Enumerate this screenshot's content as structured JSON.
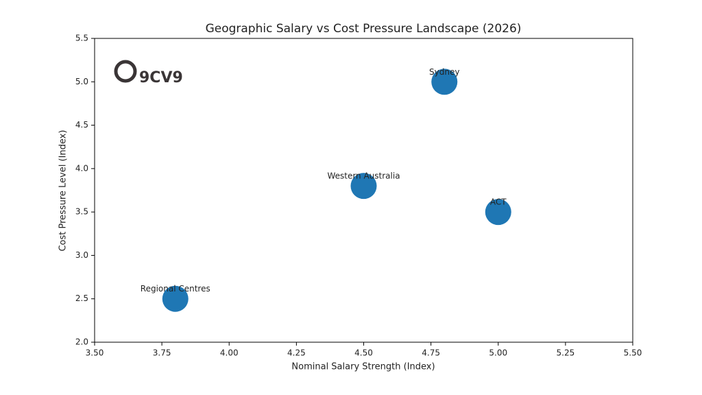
{
  "logo": "9CV9",
  "chart_data": {
    "type": "scatter",
    "title": "Geographic Salary vs Cost Pressure Landscape (2026)",
    "x_label": "Nominal Salary Strength (Index)",
    "y_label": "Cost Pressure Level (Index)",
    "labels": [
      "Sydney",
      "Western Australia",
      "ACT",
      "Regional Centres"
    ],
    "x": [
      4.8,
      4.5,
      5.0,
      3.8
    ],
    "y": [
      5.0,
      3.8,
      3.5,
      2.5
    ],
    "color": "#1f77b4",
    "xlim": [
      3.5,
      5.5
    ],
    "xticks": [
      {
        "value": 3.5,
        "label": "3.50"
      },
      3.75,
      {
        "value": 4.0,
        "label": "4.00"
      },
      4.25,
      {
        "value": 4.5,
        "label": "4.50"
      },
      4.75,
      {
        "value": 5.0,
        "label": "5.00"
      },
      5.25,
      {
        "value": 5.5,
        "label": "5.50"
      }
    ],
    "ylim": [
      2.0,
      5.5
    ],
    "yticks": [
      {
        "value": 2.0,
        "label": "2.0"
      },
      2.5,
      {
        "value": 3.0,
        "label": "3.0"
      },
      3.5,
      {
        "value": 4.0,
        "label": "4.0"
      },
      4.5,
      {
        "value": 5.0,
        "label": "5.0"
      },
      5.5
    ],
    "grid": false
  }
}
